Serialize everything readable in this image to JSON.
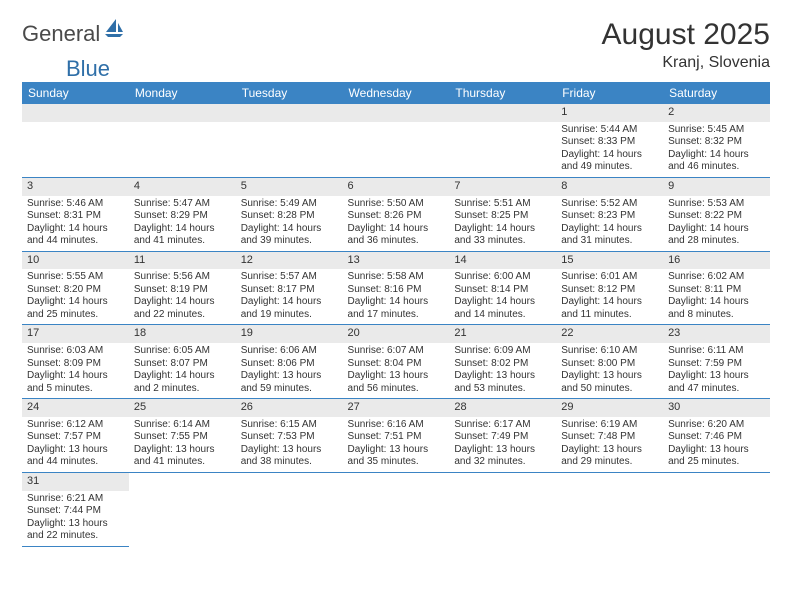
{
  "logo": {
    "text_general": "General",
    "text_blue": "Blue",
    "sail_color": "#2f6fa8"
  },
  "title": "August 2025",
  "subtitle": "Kranj, Slovenia",
  "calendar": {
    "header_bg": "#3b84c4",
    "header_fg": "#ffffff",
    "daynum_bg": "#eaeaea",
    "line_color": "#3b84c4",
    "columns": [
      "Sunday",
      "Monday",
      "Tuesday",
      "Wednesday",
      "Thursday",
      "Friday",
      "Saturday"
    ],
    "leading_blanks": 5,
    "days": [
      {
        "n": 1,
        "sunrise": "5:44 AM",
        "sunset": "8:33 PM",
        "daylight": "14 hours and 49 minutes."
      },
      {
        "n": 2,
        "sunrise": "5:45 AM",
        "sunset": "8:32 PM",
        "daylight": "14 hours and 46 minutes."
      },
      {
        "n": 3,
        "sunrise": "5:46 AM",
        "sunset": "8:31 PM",
        "daylight": "14 hours and 44 minutes."
      },
      {
        "n": 4,
        "sunrise": "5:47 AM",
        "sunset": "8:29 PM",
        "daylight": "14 hours and 41 minutes."
      },
      {
        "n": 5,
        "sunrise": "5:49 AM",
        "sunset": "8:28 PM",
        "daylight": "14 hours and 39 minutes."
      },
      {
        "n": 6,
        "sunrise": "5:50 AM",
        "sunset": "8:26 PM",
        "daylight": "14 hours and 36 minutes."
      },
      {
        "n": 7,
        "sunrise": "5:51 AM",
        "sunset": "8:25 PM",
        "daylight": "14 hours and 33 minutes."
      },
      {
        "n": 8,
        "sunrise": "5:52 AM",
        "sunset": "8:23 PM",
        "daylight": "14 hours and 31 minutes."
      },
      {
        "n": 9,
        "sunrise": "5:53 AM",
        "sunset": "8:22 PM",
        "daylight": "14 hours and 28 minutes."
      },
      {
        "n": 10,
        "sunrise": "5:55 AM",
        "sunset": "8:20 PM",
        "daylight": "14 hours and 25 minutes."
      },
      {
        "n": 11,
        "sunrise": "5:56 AM",
        "sunset": "8:19 PM",
        "daylight": "14 hours and 22 minutes."
      },
      {
        "n": 12,
        "sunrise": "5:57 AM",
        "sunset": "8:17 PM",
        "daylight": "14 hours and 19 minutes."
      },
      {
        "n": 13,
        "sunrise": "5:58 AM",
        "sunset": "8:16 PM",
        "daylight": "14 hours and 17 minutes."
      },
      {
        "n": 14,
        "sunrise": "6:00 AM",
        "sunset": "8:14 PM",
        "daylight": "14 hours and 14 minutes."
      },
      {
        "n": 15,
        "sunrise": "6:01 AM",
        "sunset": "8:12 PM",
        "daylight": "14 hours and 11 minutes."
      },
      {
        "n": 16,
        "sunrise": "6:02 AM",
        "sunset": "8:11 PM",
        "daylight": "14 hours and 8 minutes."
      },
      {
        "n": 17,
        "sunrise": "6:03 AM",
        "sunset": "8:09 PM",
        "daylight": "14 hours and 5 minutes."
      },
      {
        "n": 18,
        "sunrise": "6:05 AM",
        "sunset": "8:07 PM",
        "daylight": "14 hours and 2 minutes."
      },
      {
        "n": 19,
        "sunrise": "6:06 AM",
        "sunset": "8:06 PM",
        "daylight": "13 hours and 59 minutes."
      },
      {
        "n": 20,
        "sunrise": "6:07 AM",
        "sunset": "8:04 PM",
        "daylight": "13 hours and 56 minutes."
      },
      {
        "n": 21,
        "sunrise": "6:09 AM",
        "sunset": "8:02 PM",
        "daylight": "13 hours and 53 minutes."
      },
      {
        "n": 22,
        "sunrise": "6:10 AM",
        "sunset": "8:00 PM",
        "daylight": "13 hours and 50 minutes."
      },
      {
        "n": 23,
        "sunrise": "6:11 AM",
        "sunset": "7:59 PM",
        "daylight": "13 hours and 47 minutes."
      },
      {
        "n": 24,
        "sunrise": "6:12 AM",
        "sunset": "7:57 PM",
        "daylight": "13 hours and 44 minutes."
      },
      {
        "n": 25,
        "sunrise": "6:14 AM",
        "sunset": "7:55 PM",
        "daylight": "13 hours and 41 minutes."
      },
      {
        "n": 26,
        "sunrise": "6:15 AM",
        "sunset": "7:53 PM",
        "daylight": "13 hours and 38 minutes."
      },
      {
        "n": 27,
        "sunrise": "6:16 AM",
        "sunset": "7:51 PM",
        "daylight": "13 hours and 35 minutes."
      },
      {
        "n": 28,
        "sunrise": "6:17 AM",
        "sunset": "7:49 PM",
        "daylight": "13 hours and 32 minutes."
      },
      {
        "n": 29,
        "sunrise": "6:19 AM",
        "sunset": "7:48 PM",
        "daylight": "13 hours and 29 minutes."
      },
      {
        "n": 30,
        "sunrise": "6:20 AM",
        "sunset": "7:46 PM",
        "daylight": "13 hours and 25 minutes."
      },
      {
        "n": 31,
        "sunrise": "6:21 AM",
        "sunset": "7:44 PM",
        "daylight": "13 hours and 22 minutes."
      }
    ],
    "labels": {
      "sunrise": "Sunrise:",
      "sunset": "Sunset:",
      "daylight": "Daylight:"
    }
  }
}
